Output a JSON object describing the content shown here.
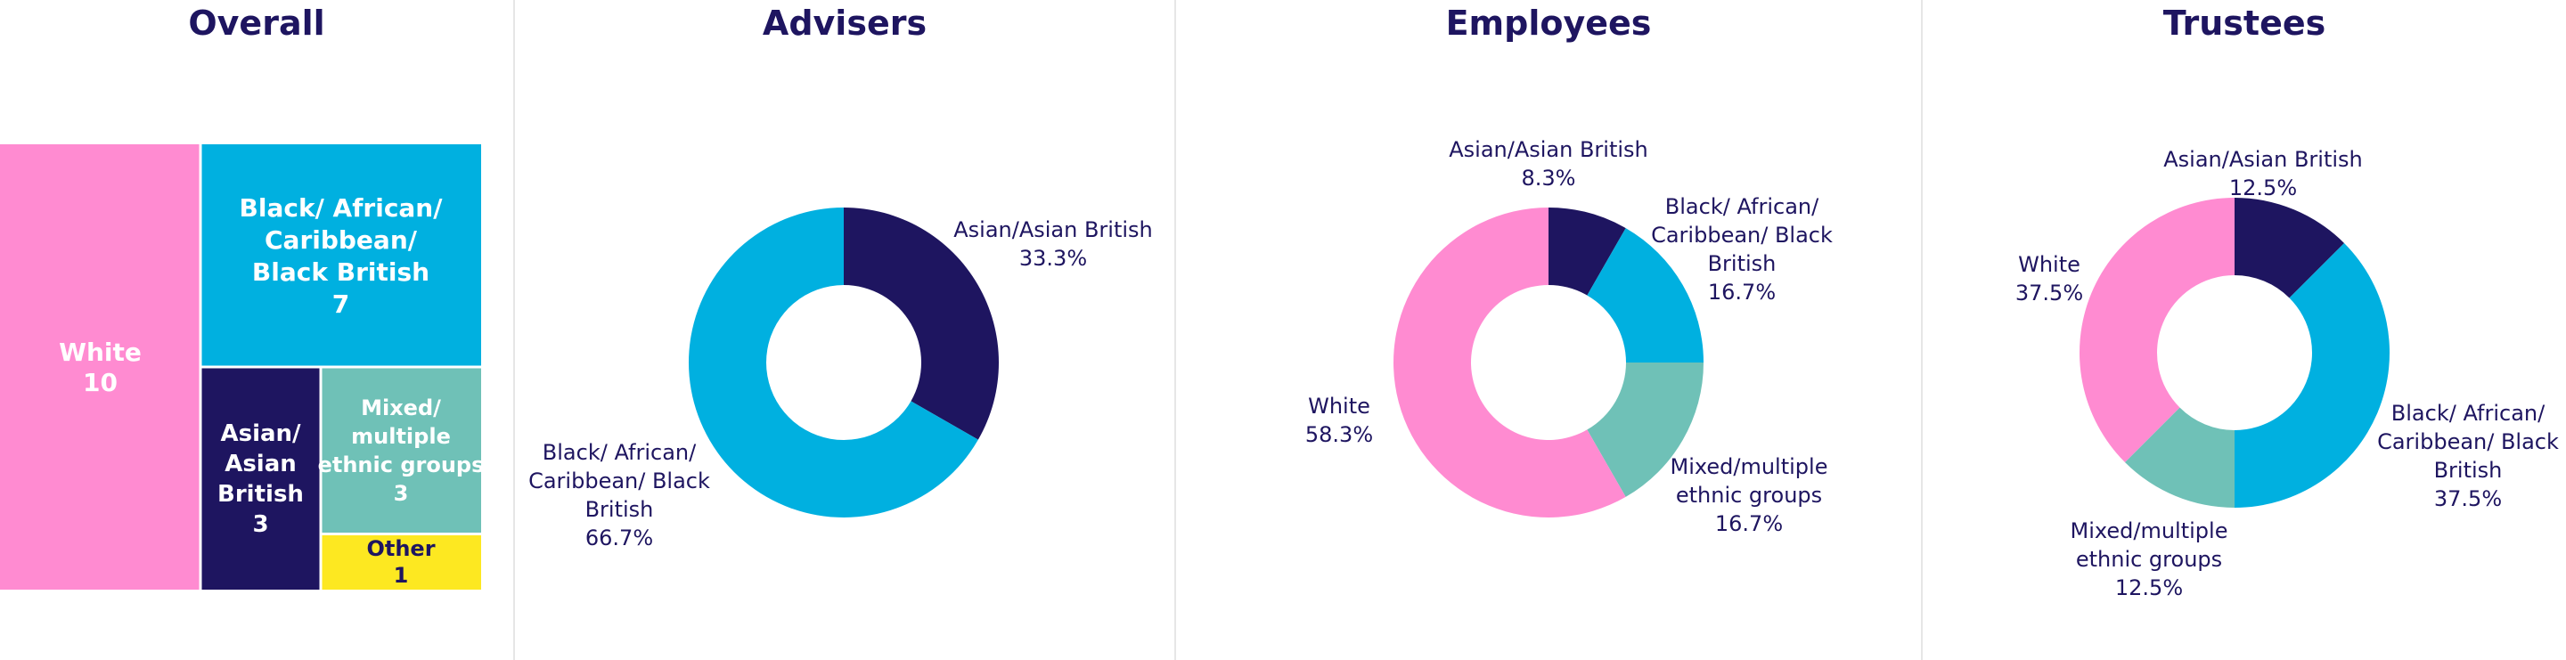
{
  "chart_data": [
    {
      "type": "treemap",
      "title": "Overall",
      "categories": [
        "White",
        "Black/ African/ Caribbean/ Black British",
        "Asian/ Asian British",
        "Mixed/ multiple ethnic groups",
        "Other"
      ],
      "values": [
        10,
        7,
        3,
        3,
        1
      ],
      "colors": [
        "#ff8bd1",
        "#00b0e0",
        "#1e1560",
        "#6fc1b7",
        "#fde821"
      ]
    },
    {
      "type": "pie",
      "title": "Advisers",
      "slices": [
        {
          "label": "Asian/Asian British",
          "value": 33.3,
          "display": "33.3%",
          "color": "#1e1560"
        },
        {
          "label": "Black/ African/ Caribbean/ Black British",
          "value": 66.7,
          "display": "66.7%",
          "color": "#00b0e0"
        }
      ]
    },
    {
      "type": "pie",
      "title": "Employees",
      "slices": [
        {
          "label": "Asian/Asian British",
          "value": 8.3,
          "display": "8.3%",
          "color": "#1e1560"
        },
        {
          "label": "Black/ African/ Caribbean/ Black British",
          "value": 16.7,
          "display": "16.7%",
          "color": "#00b0e0"
        },
        {
          "label": "Mixed/multiple ethnic groups",
          "value": 16.7,
          "display": "16.7%",
          "color": "#6fc1b7"
        },
        {
          "label": "White",
          "value": 58.3,
          "display": "58.3%",
          "color": "#ff8bd1"
        }
      ]
    },
    {
      "type": "pie",
      "title": "Trustees",
      "slices": [
        {
          "label": "Asian/Asian British",
          "value": 12.5,
          "display": "12.5%",
          "color": "#1e1560"
        },
        {
          "label": "Black/ African/ Caribbean/ Black British",
          "value": 37.5,
          "display": "37.5%",
          "color": "#00b0e0"
        },
        {
          "label": "Mixed/multiple ethnic groups",
          "value": 12.5,
          "display": "12.5%",
          "color": "#6fc1b7"
        },
        {
          "label": "White",
          "value": 37.5,
          "display": "37.5%",
          "color": "#ff8bd1"
        }
      ]
    }
  ]
}
